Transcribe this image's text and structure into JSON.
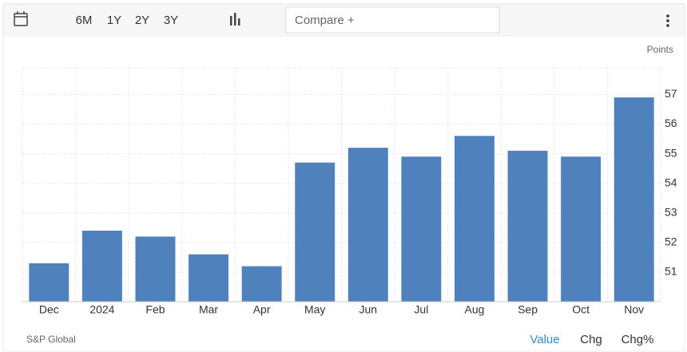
{
  "toolbar": {
    "ranges": [
      "6M",
      "1Y",
      "2Y",
      "3Y"
    ],
    "compare_placeholder": "Compare +"
  },
  "chart_data": {
    "type": "bar",
    "y_unit": "Points",
    "categories": [
      "Dec",
      "2024",
      "Feb",
      "Mar",
      "Apr",
      "May",
      "Jun",
      "Jul",
      "Aug",
      "Sep",
      "Oct",
      "Nov"
    ],
    "values": [
      51.3,
      52.4,
      52.2,
      51.6,
      51.2,
      54.7,
      55.2,
      54.9,
      55.6,
      55.1,
      54.9,
      56.9
    ],
    "color": "#4f81bd",
    "ylim": [
      50,
      57.9
    ],
    "yticks": [
      51,
      52,
      53,
      54,
      55,
      56,
      57
    ],
    "grid": true
  },
  "footer": {
    "source": "S&P Global",
    "tabs": [
      "Value",
      "Chg",
      "Chg%"
    ]
  }
}
